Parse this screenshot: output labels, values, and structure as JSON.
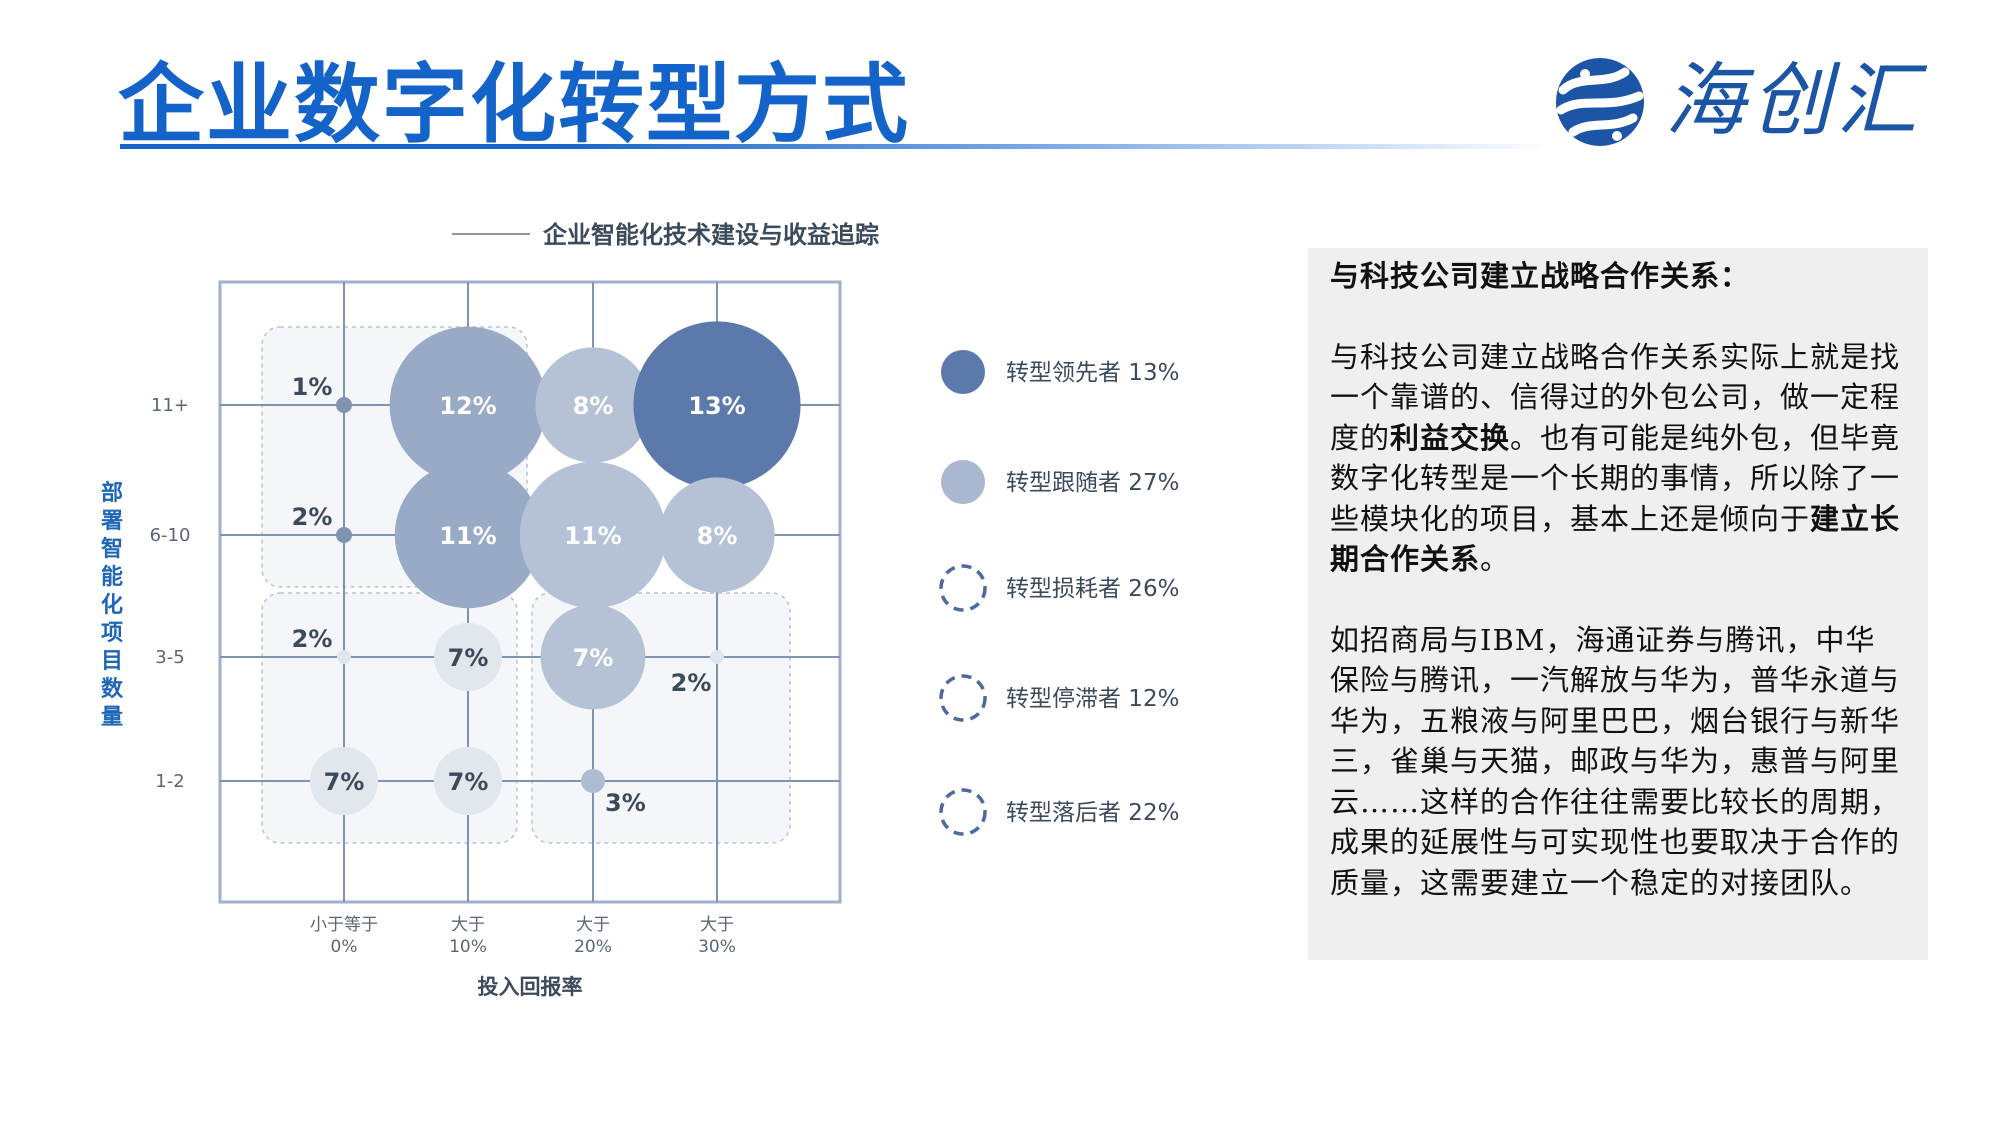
{
  "page": {
    "title": "企业数字化转型方式",
    "logo_text": "海创汇"
  },
  "chart_data": {
    "type": "scatter",
    "subtype": "bubble",
    "title": "企业智能化技术建设与收益追踪",
    "xlabel": "投入回报率",
    "ylabel": "部署智能化项目数量",
    "x_categories": [
      "小于等于 0%",
      "大于 10%",
      "大于 20%",
      "大于 30%"
    ],
    "x_tick_lines": [
      [
        "小于等于",
        "0%"
      ],
      [
        "大于",
        "10%"
      ],
      [
        "大于",
        "20%"
      ],
      [
        "大于",
        "30%"
      ]
    ],
    "y_categories": [
      "1-2",
      "3-5",
      "6-10",
      "11+"
    ],
    "grid": true,
    "legend_position": "right",
    "series": [
      {
        "name": "转型领先者",
        "label": "转型领先者 13%",
        "share": 13,
        "color": "#5b7aab",
        "style": "solid"
      },
      {
        "name": "转型跟随者",
        "label": "转型跟随者 27%",
        "share": 27,
        "color": "#a9b8d0",
        "style": "solid"
      },
      {
        "name": "转型损耗者",
        "label": "转型损耗者 26%",
        "share": 26,
        "color": "#4d6a9c",
        "style": "dashed"
      },
      {
        "name": "转型停滞者",
        "label": "转型停滞者 12%",
        "share": 12,
        "color": "#4d6a9c",
        "style": "dashed"
      },
      {
        "name": "转型落后者",
        "label": "转型落后者 22%",
        "share": 22,
        "color": "#4d6a9c",
        "style": "dashed"
      }
    ],
    "points": [
      {
        "x": "小于等于 0%",
        "y": "11+",
        "value": 1,
        "label": "1%",
        "level": "dot"
      },
      {
        "x": "大于 10%",
        "y": "11+",
        "value": 12,
        "label": "12%",
        "level": "mid"
      },
      {
        "x": "大于 20%",
        "y": "11+",
        "value": 8,
        "label": "8%",
        "level": "light"
      },
      {
        "x": "大于 30%",
        "y": "11+",
        "value": 13,
        "label": "13%",
        "level": "dark"
      },
      {
        "x": "小于等于 0%",
        "y": "6-10",
        "value": 2,
        "label": "2%",
        "level": "dot"
      },
      {
        "x": "大于 10%",
        "y": "6-10",
        "value": 11,
        "label": "11%",
        "level": "mid"
      },
      {
        "x": "大于 20%",
        "y": "6-10",
        "value": 11,
        "label": "11%",
        "level": "light"
      },
      {
        "x": "大于 30%",
        "y": "6-10",
        "value": 8,
        "label": "8%",
        "level": "light"
      },
      {
        "x": "小于等于 0%",
        "y": "3-5",
        "value": 2,
        "label": "2%",
        "level": "faint"
      },
      {
        "x": "大于 10%",
        "y": "3-5",
        "value": 7,
        "label": "7%",
        "level": "pale"
      },
      {
        "x": "大于 20%",
        "y": "3-5",
        "value": 7,
        "label": "7%",
        "level": "light"
      },
      {
        "x": "大于 30%",
        "y": "3-5",
        "value": 2,
        "label": "2%",
        "level": "faint"
      },
      {
        "x": "小于等于 0%",
        "y": "1-2",
        "value": 7,
        "label": "7%",
        "level": "pale"
      },
      {
        "x": "大于 10%",
        "y": "1-2",
        "value": 7,
        "label": "7%",
        "level": "pale"
      },
      {
        "x": "大于 20%",
        "y": "1-2",
        "value": 3,
        "label": "3%",
        "level": "small"
      }
    ]
  },
  "text_panel": {
    "heading": "与科技公司建立战略合作关系：",
    "para1": {
      "part1": "与科技公司建立战略合作关系实际上就是找一个靠谱的、信得过的外包公司，做一定程度的",
      "emph1": "利益交换",
      "part2": "。也有可能是纯外包，但毕竟数字化转型是一个长期的事情，所以除了一些模块化的项目，基本上还是倾向于",
      "emph2": "建立长期合作关系",
      "part3": "。"
    },
    "para2": "如招商局与IBM，海通证券与腾讯，中华保险与腾讯，一汽解放与华为，普华永道与华为，五粮液与阿里巴巴，烟台银行与新华三，雀巢与天猫，邮政与华为，惠普与阿里云……这样的合作往往需要比较长的周期，成果的延展性与可实现性也要取决于合作的质量，这需要建立一个稳定的对接团队。"
  }
}
